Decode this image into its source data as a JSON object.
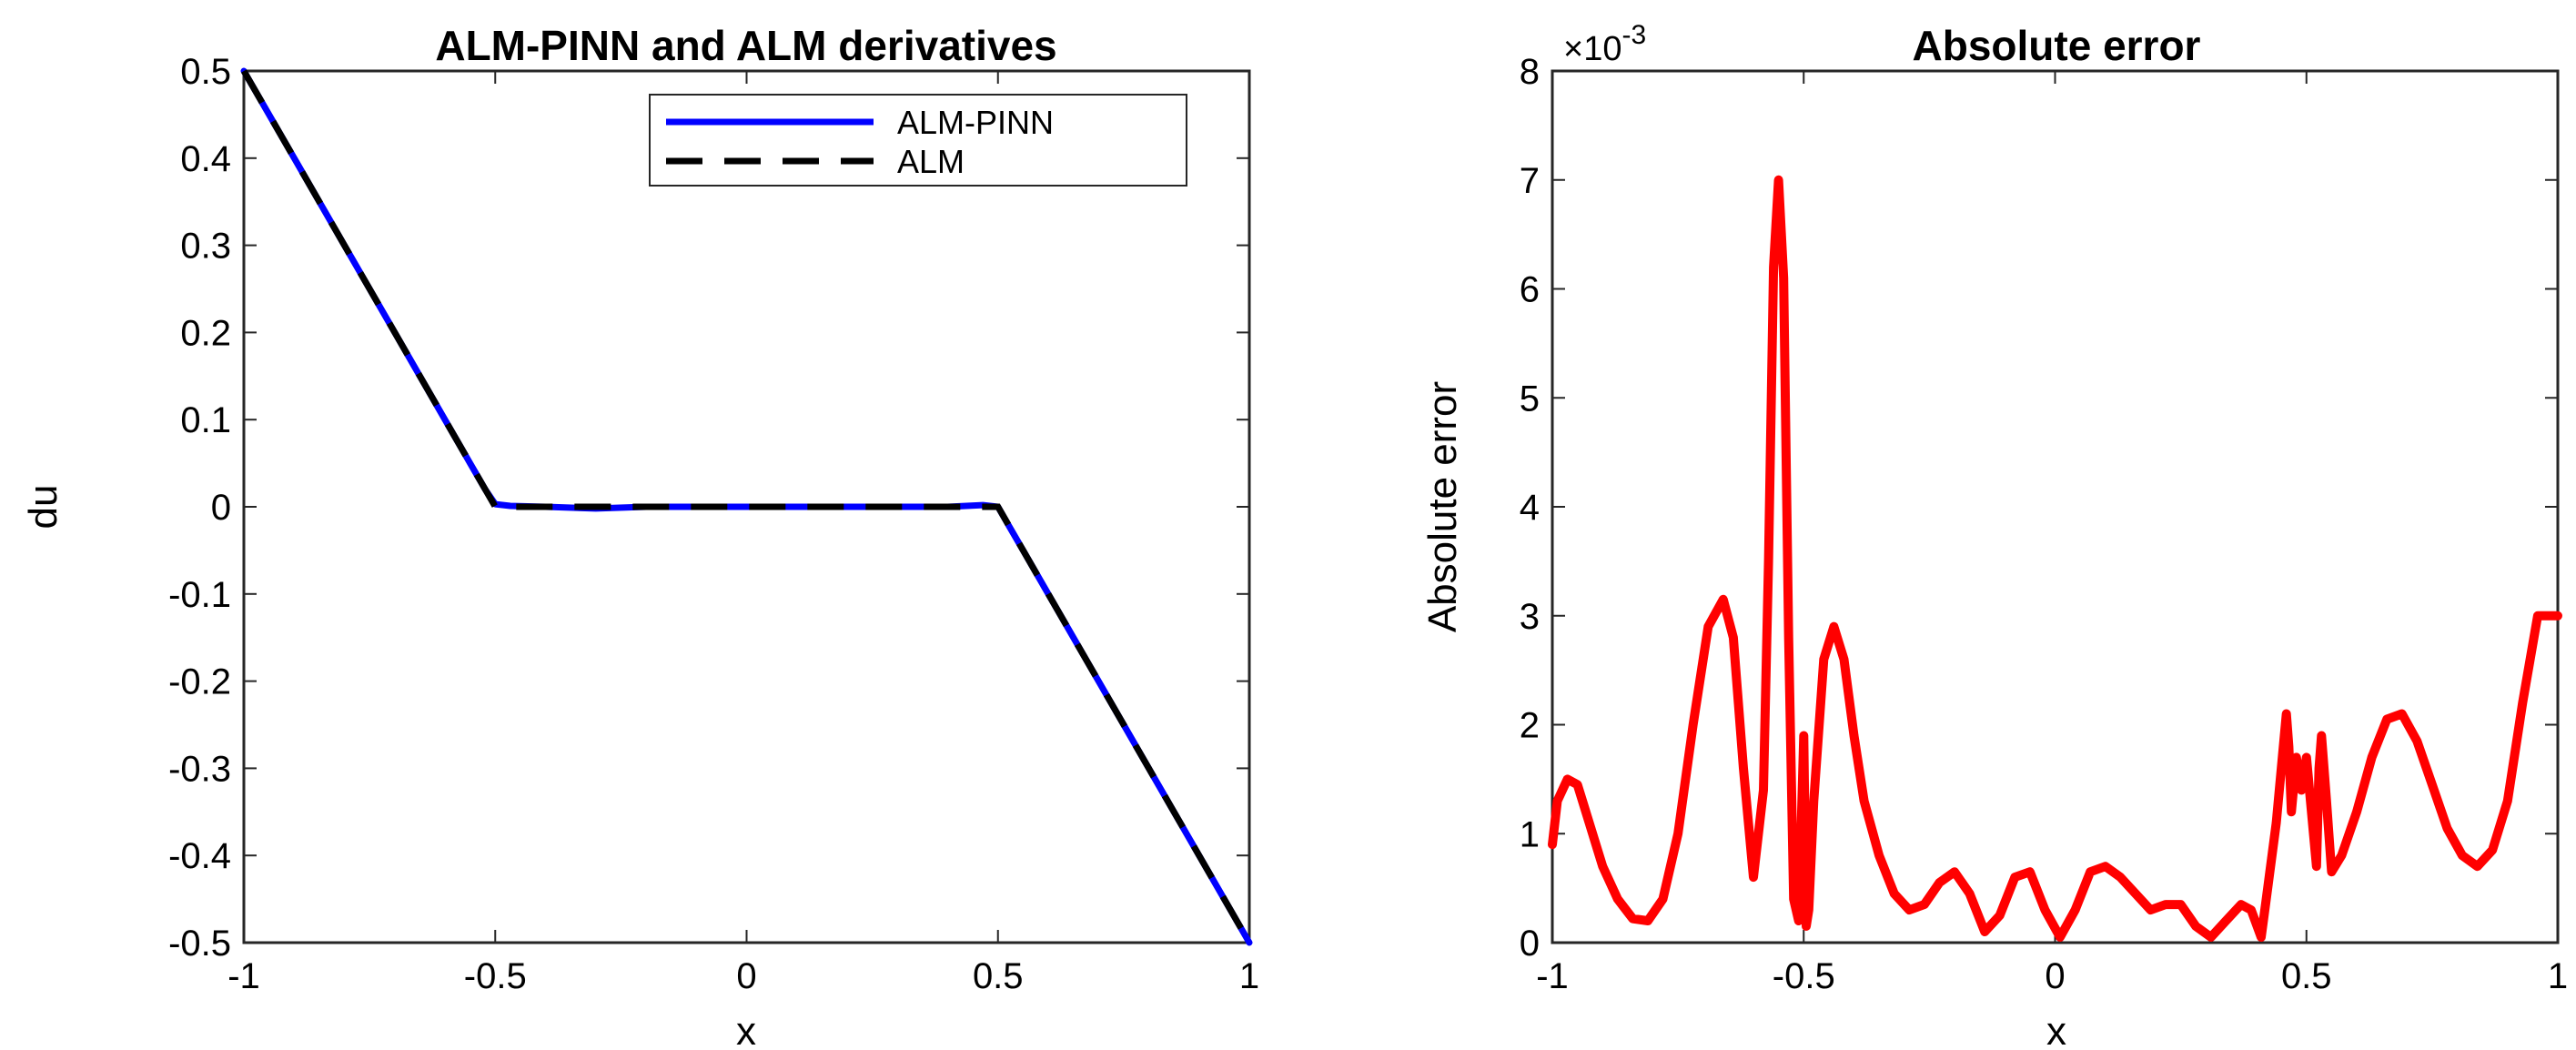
{
  "chart_data": [
    {
      "type": "line",
      "title": "ALM-PINN and ALM derivatives",
      "xlabel": "x",
      "ylabel": "du",
      "xlim": [
        -1,
        1
      ],
      "ylim": [
        -0.5,
        0.5
      ],
      "xticks": [
        "-1",
        "-0.5",
        "0",
        "0.5",
        "1"
      ],
      "yticks": [
        "-0.5",
        "-0.4",
        "-0.3",
        "-0.2",
        "-0.1",
        "0",
        "0.1",
        "0.2",
        "0.3",
        "0.4",
        "0.5"
      ],
      "grid": false,
      "legend_position": "top-right",
      "series": [
        {
          "name": "ALM-PINN",
          "color": "#0000ff",
          "style": "solid",
          "x": [
            -1,
            -0.9,
            -0.8,
            -0.7,
            -0.6,
            -0.55,
            -0.52,
            -0.5,
            -0.47,
            -0.4,
            -0.3,
            -0.2,
            -0.1,
            0,
            0.1,
            0.2,
            0.3,
            0.4,
            0.47,
            0.5,
            0.52,
            0.55,
            0.6,
            0.7,
            0.8,
            0.9,
            1
          ],
          "y": [
            0.5,
            0.4,
            0.3,
            0.2,
            0.1,
            0.05,
            0.02,
            0.003,
            0.001,
            0.0,
            -0.002,
            0.0,
            0.0,
            0.0,
            0.0,
            0.0,
            0.0,
            0.0,
            0.002,
            0.0,
            -0.02,
            -0.05,
            -0.1,
            -0.2,
            -0.3,
            -0.4,
            -0.5
          ]
        },
        {
          "name": "ALM",
          "color": "#000000",
          "style": "dashed",
          "x": [
            -1,
            -0.9,
            -0.8,
            -0.7,
            -0.6,
            -0.55,
            -0.5,
            -0.4,
            -0.3,
            -0.2,
            -0.1,
            0,
            0.1,
            0.2,
            0.3,
            0.4,
            0.5,
            0.55,
            0.6,
            0.7,
            0.8,
            0.9,
            1
          ],
          "y": [
            0.5,
            0.4,
            0.3,
            0.2,
            0.1,
            0.05,
            0.0,
            0.0,
            0.0,
            0.0,
            0.0,
            0.0,
            0.0,
            0.0,
            0.0,
            0.0,
            0.0,
            -0.05,
            -0.1,
            -0.2,
            -0.3,
            -0.4,
            -0.5
          ]
        }
      ]
    },
    {
      "type": "line",
      "title": "Absolute error",
      "xlabel": "x",
      "ylabel": "Absolute error",
      "xlim": [
        -1,
        1
      ],
      "ylim": [
        0,
        8
      ],
      "y_multiplier": "×10",
      "y_multiplier_exp": "-3",
      "xticks": [
        "-1",
        "-0.5",
        "0",
        "0.5",
        "1"
      ],
      "yticks": [
        "0",
        "1",
        "2",
        "3",
        "4",
        "5",
        "6",
        "7",
        "8"
      ],
      "grid": false,
      "series": [
        {
          "name": "Absolute error",
          "color": "#ff0000",
          "style": "solid",
          "x": [
            -1,
            -0.99,
            -0.97,
            -0.95,
            -0.93,
            -0.9,
            -0.87,
            -0.84,
            -0.81,
            -0.78,
            -0.75,
            -0.72,
            -0.69,
            -0.66,
            -0.64,
            -0.62,
            -0.6,
            -0.58,
            -0.57,
            -0.56,
            -0.55,
            -0.54,
            -0.53,
            -0.52,
            -0.51,
            -0.5,
            -0.495,
            -0.49,
            -0.48,
            -0.46,
            -0.44,
            -0.42,
            -0.4,
            -0.38,
            -0.35,
            -0.32,
            -0.29,
            -0.26,
            -0.23,
            -0.2,
            -0.17,
            -0.14,
            -0.11,
            -0.08,
            -0.05,
            -0.02,
            0.01,
            0.04,
            0.07,
            0.1,
            0.13,
            0.16,
            0.19,
            0.22,
            0.25,
            0.28,
            0.31,
            0.34,
            0.37,
            0.39,
            0.41,
            0.42,
            0.44,
            0.46,
            0.465,
            0.47,
            0.48,
            0.49,
            0.5,
            0.51,
            0.52,
            0.525,
            0.53,
            0.54,
            0.55,
            0.57,
            0.6,
            0.63,
            0.66,
            0.69,
            0.72,
            0.75,
            0.78,
            0.81,
            0.84,
            0.87,
            0.9,
            0.93,
            0.96,
            0.98,
            1
          ],
          "y": [
            0.9,
            1.3,
            1.5,
            1.45,
            1.15,
            0.7,
            0.4,
            0.22,
            0.2,
            0.4,
            1.0,
            2.0,
            2.9,
            3.15,
            2.8,
            1.6,
            0.6,
            1.4,
            3.5,
            6.2,
            7.0,
            6.1,
            2.8,
            0.4,
            0.2,
            1.9,
            0.15,
            0.3,
            1.3,
            2.6,
            2.9,
            2.6,
            1.9,
            1.3,
            0.8,
            0.45,
            0.3,
            0.35,
            0.55,
            0.65,
            0.45,
            0.1,
            0.25,
            0.6,
            0.65,
            0.3,
            0.05,
            0.3,
            0.65,
            0.7,
            0.6,
            0.45,
            0.3,
            0.35,
            0.35,
            0.15,
            0.05,
            0.2,
            0.35,
            0.3,
            0.05,
            0.4,
            1.1,
            2.1,
            1.8,
            1.2,
            1.7,
            1.4,
            1.7,
            1.2,
            0.7,
            1.6,
            1.9,
            1.3,
            0.65,
            0.8,
            1.2,
            1.7,
            2.05,
            2.1,
            1.85,
            1.45,
            1.05,
            0.8,
            0.7,
            0.85,
            1.3,
            2.2,
            3.0,
            3.0,
            3.0
          ]
        }
      ]
    }
  ]
}
